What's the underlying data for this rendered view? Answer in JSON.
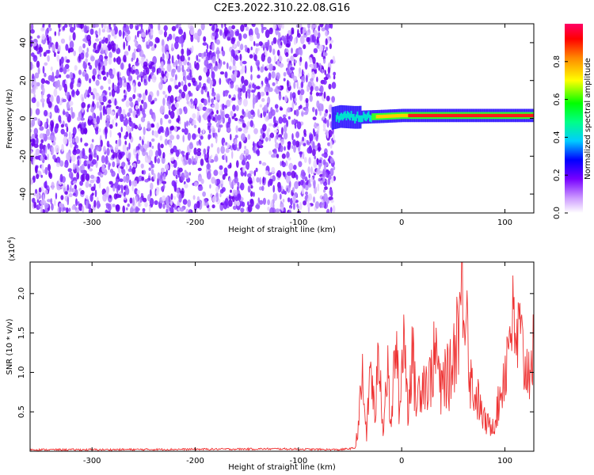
{
  "title": "C2E3.2022.310.22.08.G16",
  "chart_data": [
    {
      "type": "heatmap",
      "title": "C2E3.2022.310.22.08.G16",
      "xlabel": "Height of straight line (km)",
      "ylabel": "Frequency (Hz)",
      "xlim": [
        -360,
        128
      ],
      "ylim": [
        -50,
        50
      ],
      "x_ticks": [
        -300,
        -200,
        -100,
        0,
        100
      ],
      "y_ticks": [
        -40,
        -20,
        0,
        20,
        40
      ],
      "colorbar": {
        "label": "Normalized spectral amplitude",
        "range": [
          0.0,
          1.0
        ],
        "ticks": [
          0.0,
          0.2,
          0.4,
          0.6,
          0.8
        ],
        "tick_labels": [
          "0.0",
          "0.2",
          "0.4",
          "0.6",
          "0.8"
        ],
        "colors": [
          "#ffffff",
          "#7700ff",
          "#0000ff",
          "#00ffff",
          "#00ff00",
          "#ffff00",
          "#ff8800",
          "#ff0000",
          "#ff0066"
        ]
      },
      "noise_region": {
        "x_range": [
          -360,
          -65
        ],
        "freq_range": [
          -50,
          50
        ],
        "amplitude": "low (0.0-0.2)"
      },
      "signal_track": [
        {
          "x": -68,
          "freq": 0.0
        },
        {
          "x": -60,
          "freq": 1.0
        },
        {
          "x": -45,
          "freq": 0.5
        },
        {
          "x": -20,
          "freq": 1.0
        },
        {
          "x": 0,
          "freq": 1.5
        },
        {
          "x": 50,
          "freq": 1.5
        },
        {
          "x": 128,
          "freq": 1.5
        }
      ]
    },
    {
      "type": "line",
      "xlabel": "Height of straight line (km)",
      "ylabel": "SNR (10 * v/v)",
      "y_exponent_label": "(x10",
      "y_exponent_power": "4",
      "y_exponent_close": ")",
      "xlim": [
        -360,
        128
      ],
      "ylim": [
        0,
        24000
      ],
      "x_ticks": [
        -300,
        -200,
        -100,
        0,
        100
      ],
      "y_ticks": [
        5000,
        10000,
        15000,
        20000
      ],
      "y_tick_labels": [
        "0.5",
        "1.0",
        "1.5",
        "2.0"
      ],
      "color": "#ee3333",
      "series": [
        {
          "x": [
            -360,
            -300,
            -200,
            -120,
            -60,
            -45,
            -42,
            -38,
            -34,
            -30,
            -26,
            -22,
            -18,
            -14,
            -10,
            -6,
            -2,
            2,
            6,
            10,
            14,
            18,
            22,
            26,
            30,
            34,
            38,
            42,
            46,
            50,
            54,
            58,
            60,
            62,
            64,
            66,
            70,
            74,
            78,
            82,
            86,
            90,
            94,
            98,
            102,
            106,
            110,
            114,
            118,
            122,
            128
          ],
          "y": [
            200,
            200,
            250,
            300,
            200,
            400,
            3500,
            9000,
            2000,
            11500,
            4000,
            12500,
            3000,
            10500,
            2500,
            15000,
            4500,
            16500,
            5000,
            13000,
            6000,
            8500,
            9500,
            8000,
            11000,
            12500,
            7000,
            10000,
            9000,
            12000,
            16000,
            19500,
            22000,
            21500,
            17500,
            9500,
            7500,
            6500,
            4500,
            3500,
            3200,
            3800,
            6000,
            9000,
            12000,
            18000,
            13000,
            15000,
            11500,
            10000,
            14000
          ]
        }
      ]
    }
  ]
}
